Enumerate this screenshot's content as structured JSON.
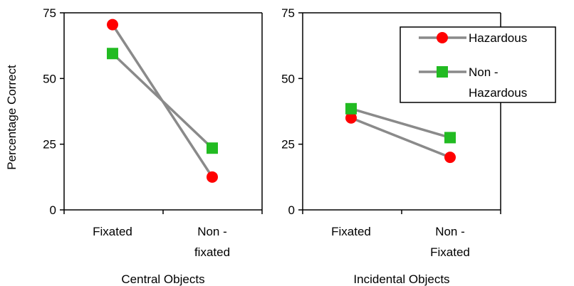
{
  "colors": {
    "line": "#8a8a8a",
    "hazardous": "#ff0000",
    "non_hazardous": "#22bb22",
    "axis": "#000000"
  },
  "legend": {
    "hazardous_label": "Hazardous",
    "non_hazardous_line1": "Non -",
    "non_hazardous_line2": "Hazardous"
  },
  "y_axis_title": "Percentage Correct",
  "chart_data": [
    {
      "type": "line",
      "title": "",
      "xlabel": "Central Objects",
      "ylabel": "Percentage Correct",
      "ylim": [
        0,
        75
      ],
      "yticks": [
        "0",
        "25",
        "50",
        "75"
      ],
      "categories": [
        [
          "Fixated"
        ],
        [
          "Non -",
          "fixated"
        ]
      ],
      "series": [
        {
          "name": "Hazardous",
          "values": [
            70.5,
            12.5
          ]
        },
        {
          "name": "Non - Hazardous",
          "values": [
            59.5,
            23.5
          ]
        }
      ],
      "legend": "none"
    },
    {
      "type": "line",
      "title": "",
      "xlabel": "Incidental Objects",
      "ylabel": "",
      "ylim": [
        0,
        75
      ],
      "yticks": [
        "0",
        "25",
        "50",
        "75"
      ],
      "categories": [
        [
          "Fixated"
        ],
        [
          "Non -",
          "Fixated"
        ]
      ],
      "series": [
        {
          "name": "Hazardous",
          "values": [
            35,
            20
          ]
        },
        {
          "name": "Non - Hazardous",
          "values": [
            38.5,
            27.5
          ]
        }
      ],
      "legend": "top-right"
    }
  ]
}
